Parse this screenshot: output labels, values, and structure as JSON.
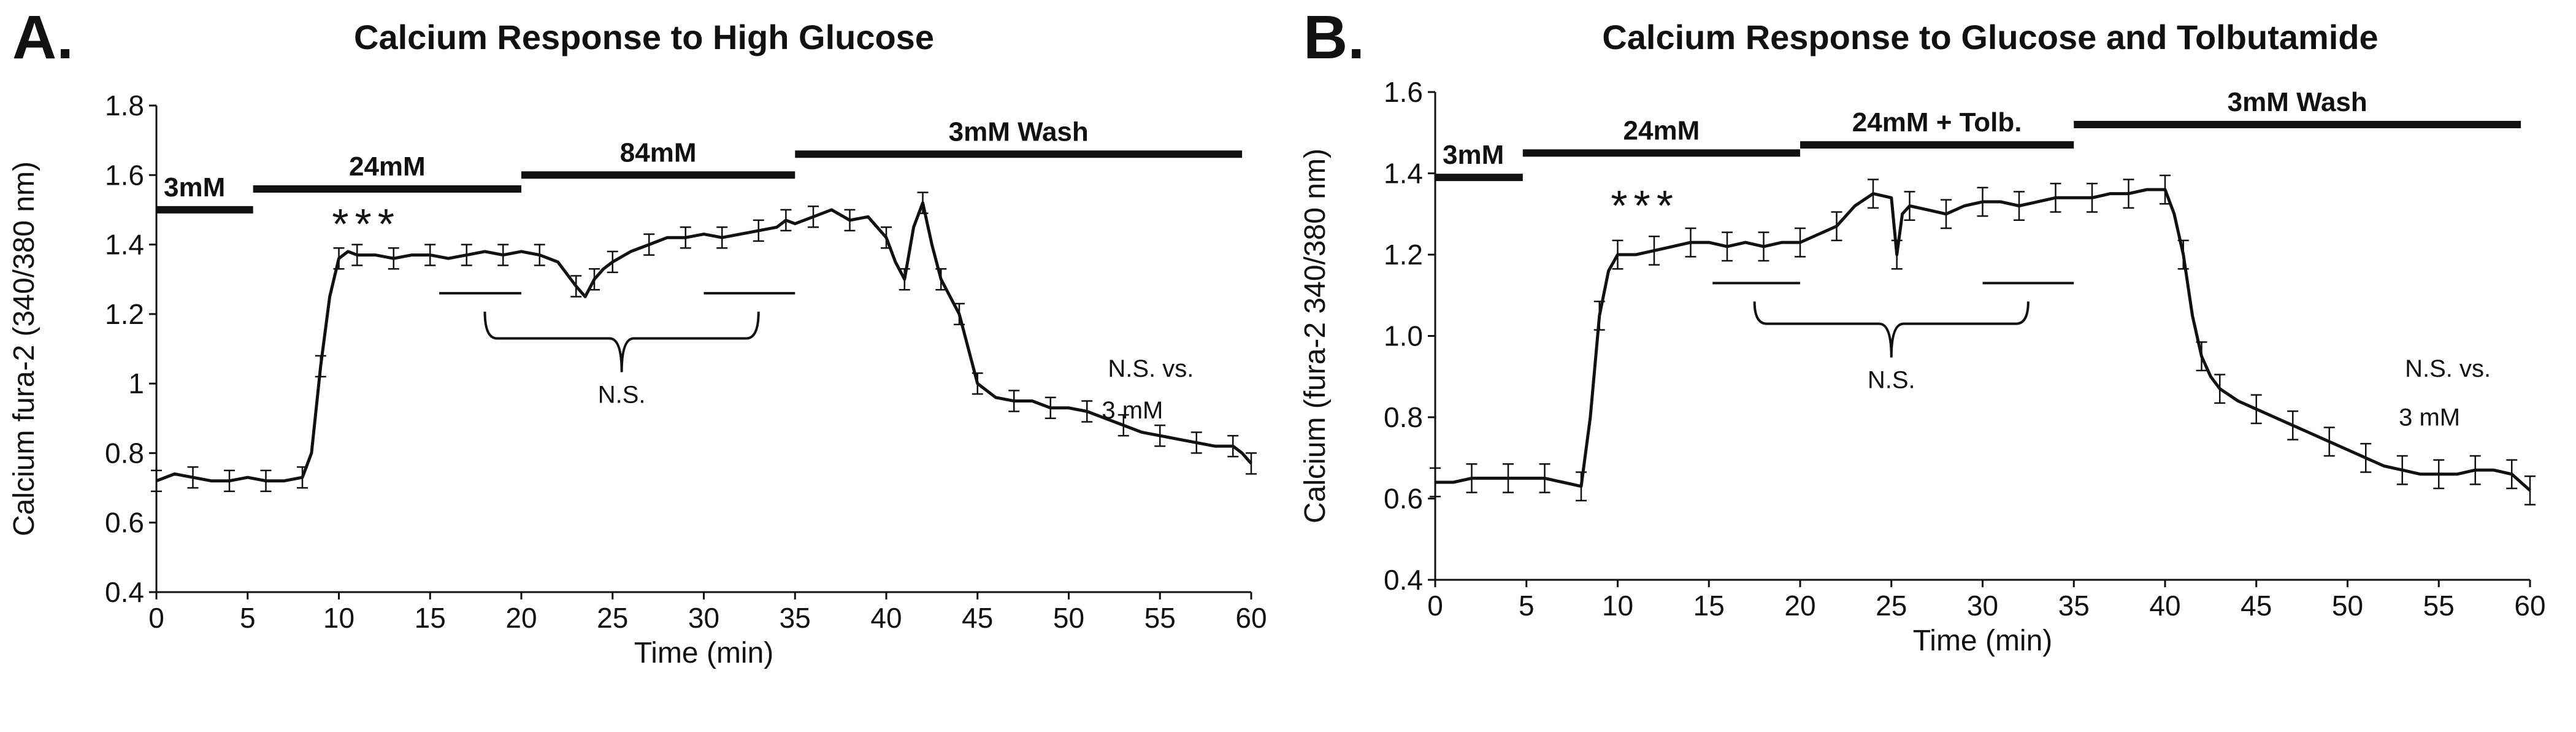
{
  "figure": {
    "background": "#ffffff",
    "ink": "#111111"
  },
  "chart_data": [
    {
      "panel_label": "A.",
      "type": "line",
      "title": "Calcium Response to High Glucose",
      "xlabel": "Time (min)",
      "ylabel": "Calcium fura-2 (340/380 nm)",
      "xlim": [
        0,
        60
      ],
      "ylim": [
        0.4,
        1.8
      ],
      "xticks": [
        0,
        5,
        10,
        15,
        20,
        25,
        30,
        35,
        40,
        45,
        50,
        55,
        60
      ],
      "xtick_labels": [
        "0",
        "5",
        "10",
        "15",
        "20",
        "25",
        "30",
        "35",
        "40",
        "45",
        "50",
        "55",
        "60"
      ],
      "yticks": [
        0.4,
        0.6,
        0.8,
        1.0,
        1.2,
        1.4,
        1.6,
        1.8
      ],
      "ytick_labels": [
        "0.4",
        "0.6",
        "0.8",
        "1",
        "1.2",
        "1.4",
        "1.6",
        "1.8"
      ],
      "periods": [
        {
          "label": "3mM",
          "x_start": 0,
          "x_end": 5.3,
          "y": 1.5
        },
        {
          "label": "24mM",
          "x_start": 5.3,
          "x_end": 20,
          "y": 1.56
        },
        {
          "label": "84mM",
          "x_start": 20,
          "x_end": 35,
          "y": 1.6
        },
        {
          "label": "3mM Wash",
          "x_start": 35,
          "x_end": 59.5,
          "y": 1.66
        }
      ],
      "significance": {
        "label": "***",
        "x": 11.5,
        "y": 1.47
      },
      "comparison": {
        "label": "N.S.",
        "segment_left": [
          15.5,
          20
        ],
        "segment_right": [
          30,
          35
        ],
        "y": 1.26,
        "brace": [
          18,
          33
        ],
        "brace_y": 1.13
      },
      "right_note": {
        "line1": "N.S. vs.",
        "line2": "3 mM",
        "x": 54.5,
        "y1": 1.02,
        "y2": 0.9
      },
      "series": [
        {
          "name": "Calcium (fura-2 340/380 nm)",
          "x": [
            0,
            1,
            2,
            3,
            4,
            5,
            6,
            7,
            8,
            8.5,
            9,
            9.5,
            10,
            10.5,
            11,
            12,
            13,
            14,
            15,
            16,
            17,
            18,
            19,
            20,
            21,
            22,
            23,
            23.5,
            24,
            24.5,
            25,
            26,
            27,
            28,
            29,
            30,
            31,
            32,
            33,
            34,
            34.5,
            35,
            36,
            37,
            38,
            39,
            40,
            40.5,
            41,
            41.5,
            42,
            42.5,
            43,
            43.5,
            44,
            44.5,
            45,
            46,
            47,
            48,
            49,
            50,
            51,
            52,
            53,
            54,
            55,
            56,
            57,
            58,
            59,
            59.5,
            60
          ],
          "y": [
            0.72,
            0.74,
            0.73,
            0.72,
            0.72,
            0.73,
            0.72,
            0.72,
            0.73,
            0.8,
            1.05,
            1.25,
            1.36,
            1.38,
            1.37,
            1.37,
            1.36,
            1.37,
            1.37,
            1.36,
            1.37,
            1.38,
            1.37,
            1.38,
            1.37,
            1.35,
            1.28,
            1.25,
            1.3,
            1.33,
            1.35,
            1.38,
            1.4,
            1.42,
            1.42,
            1.43,
            1.42,
            1.43,
            1.44,
            1.45,
            1.47,
            1.46,
            1.48,
            1.5,
            1.47,
            1.48,
            1.42,
            1.35,
            1.3,
            1.45,
            1.52,
            1.4,
            1.3,
            1.25,
            1.2,
            1.1,
            1.0,
            0.96,
            0.95,
            0.95,
            0.93,
            0.93,
            0.92,
            0.9,
            0.88,
            0.86,
            0.85,
            0.84,
            0.83,
            0.82,
            0.82,
            0.8,
            0.77
          ],
          "error_every": 2,
          "error": 0.03
        }
      ]
    },
    {
      "panel_label": "B.",
      "type": "line",
      "title": "Calcium Response to Glucose and Tolbutamide",
      "xlabel": "Time (min)",
      "ylabel": "Calcium (fura-2 340/380 nm)",
      "xlim": [
        0,
        60
      ],
      "ylim": [
        0.4,
        1.6
      ],
      "xticks": [
        0,
        5,
        10,
        15,
        20,
        25,
        30,
        35,
        40,
        45,
        50,
        55,
        60
      ],
      "xtick_labels": [
        "0",
        "5",
        "10",
        "15",
        "20",
        "25",
        "30",
        "35",
        "40",
        "45",
        "50",
        "55",
        "60"
      ],
      "yticks": [
        0.4,
        0.6,
        0.8,
        1.0,
        1.2,
        1.4,
        1.6
      ],
      "ytick_labels": [
        "0.4",
        "0.6",
        "0.8",
        "1.0",
        "1.2",
        "1.4",
        "1.6"
      ],
      "periods": [
        {
          "label": "3mM",
          "x_start": 0,
          "x_end": 4.8,
          "y": 1.39
        },
        {
          "label": "24mM",
          "x_start": 4.8,
          "x_end": 20,
          "y": 1.45
        },
        {
          "label": "24mM + Tolb.",
          "x_start": 20,
          "x_end": 35,
          "y": 1.47
        },
        {
          "label": "3mM Wash",
          "x_start": 35,
          "x_end": 59.5,
          "y": 1.52
        }
      ],
      "significance": {
        "label": "***",
        "x": 11.5,
        "y": 1.33
      },
      "comparison": {
        "label": "N.S.",
        "segment_left": [
          15.2,
          20
        ],
        "segment_right": [
          30,
          35
        ],
        "y": 1.13,
        "brace": [
          17.5,
          32.5
        ],
        "brace_y": 1.03
      },
      "right_note": {
        "line1": "N.S. vs.",
        "line2": "3 mM",
        "x": 55.5,
        "y1": 0.9,
        "y2": 0.78
      },
      "series": [
        {
          "name": "Calcium (fura-2 340/380 nm)",
          "x": [
            0,
            1,
            2,
            3,
            4,
            5,
            6,
            7,
            8,
            8.5,
            9,
            9.5,
            10,
            11,
            12,
            13,
            14,
            15,
            16,
            17,
            18,
            19,
            20,
            21,
            22,
            23,
            24,
            25,
            25.3,
            25.6,
            26,
            27,
            28,
            29,
            30,
            31,
            32,
            33,
            34,
            35,
            36,
            37,
            38,
            39,
            40,
            40.5,
            41,
            41.5,
            42,
            42.5,
            43,
            44,
            45,
            46,
            47,
            48,
            49,
            50,
            51,
            52,
            53,
            54,
            55,
            56,
            57,
            58,
            59,
            59.5,
            60
          ],
          "y": [
            0.64,
            0.64,
            0.65,
            0.65,
            0.65,
            0.65,
            0.65,
            0.64,
            0.63,
            0.8,
            1.05,
            1.16,
            1.2,
            1.2,
            1.21,
            1.22,
            1.23,
            1.23,
            1.22,
            1.23,
            1.22,
            1.23,
            1.23,
            1.25,
            1.27,
            1.32,
            1.35,
            1.34,
            1.2,
            1.3,
            1.32,
            1.31,
            1.3,
            1.32,
            1.33,
            1.33,
            1.32,
            1.33,
            1.34,
            1.34,
            1.34,
            1.35,
            1.35,
            1.36,
            1.36,
            1.3,
            1.2,
            1.05,
            0.95,
            0.9,
            0.87,
            0.84,
            0.82,
            0.8,
            0.78,
            0.76,
            0.74,
            0.72,
            0.7,
            0.68,
            0.67,
            0.66,
            0.66,
            0.66,
            0.67,
            0.67,
            0.66,
            0.64,
            0.62
          ],
          "error_every": 2,
          "error": 0.035
        }
      ]
    }
  ]
}
